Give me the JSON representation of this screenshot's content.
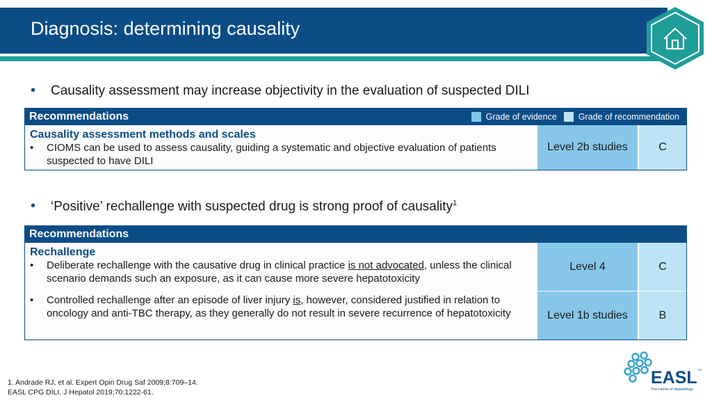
{
  "header": {
    "title": "Diagnosis: determining causality"
  },
  "home_button": {
    "icon": "home-icon"
  },
  "bullets": [
    {
      "text": "Causality assessment may increase objectivity in the evaluation of suspected DILI",
      "sup": ""
    },
    {
      "text": "‘Positive’ rechallenge with suspected drug is strong proof of causality",
      "sup": "1"
    }
  ],
  "bullet_symbol": "•",
  "table1": {
    "header": "Recommendations",
    "legend": {
      "evidence": "Grade of evidence",
      "recommendation": "Grade of recommendation"
    },
    "subheading": "Causality assessment methods and scales",
    "items": [
      {
        "text": "CIOMS can be used to assess causality, guiding a systematic and objective evaluation of patients suspected to have DILI",
        "evidence": "Level 2b studies",
        "grade": "C"
      }
    ]
  },
  "table2": {
    "header": "Recommendations",
    "subheading": "Rechallenge",
    "items": [
      {
        "pre": "Deliberate rechallenge with the causative drug in clinical practice ",
        "underline": "is not advocated",
        "post": ", unless the clinical scenario demands such an exposure, as it can cause more severe hepatotoxicity",
        "evidence": "Level 4",
        "grade": "C"
      },
      {
        "pre": "Controlled rechallenge after an episode of liver injury ",
        "underline": "is",
        "post": ", however, considered justified in relation to oncology and anti-TBC therapy, as they generally do not result in severe recurrence of hepatotoxicity",
        "evidence": "Level 1b studies",
        "grade": "B"
      }
    ]
  },
  "footnotes": [
    "1. Andrade RJ, et al. Expert Opin Drug Saf 2009;8:709–14.",
    "EASL CPG DILI. J Hepatol 2019;70:1222-61."
  ],
  "logo": {
    "name": "EASL",
    "tm": "TM",
    "tagline": "The Home of Hepatology"
  },
  "colors": {
    "primary": "#0b4c86",
    "teal": "#1e9d99",
    "evidence": "#86c7ea",
    "grade": "#bde4f6"
  }
}
